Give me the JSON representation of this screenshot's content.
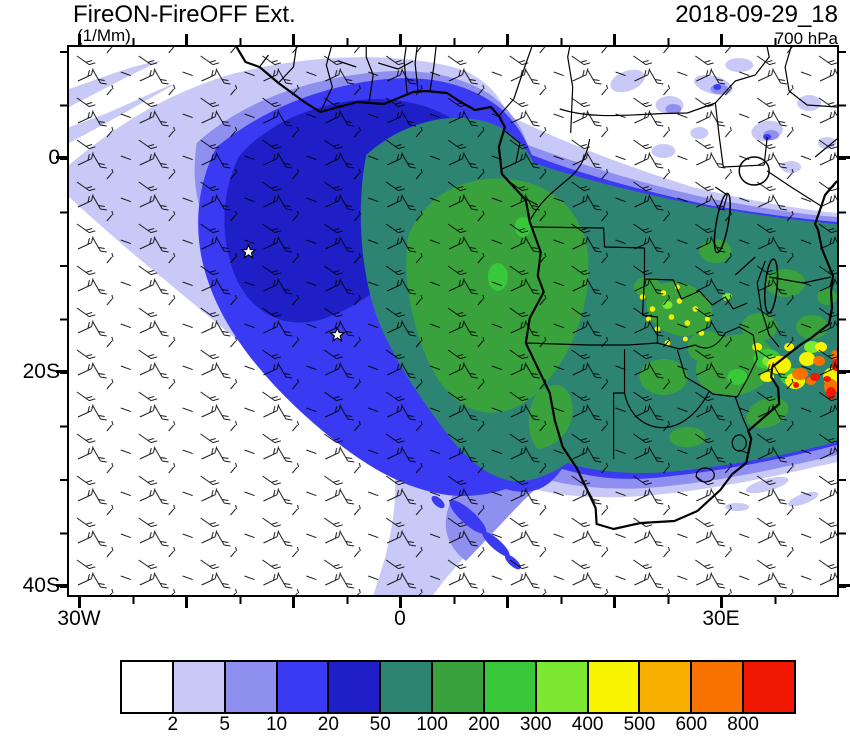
{
  "header": {
    "title": "FireON-FireOFF Ext.",
    "units": "(1/Mm)",
    "datetime": "2018-09-29_18",
    "level": "700 hPa"
  },
  "axes": {
    "y_ticks": [
      "0",
      "20S",
      "40S"
    ],
    "x_ticks": [
      "30W",
      "0",
      "30E"
    ]
  },
  "colorbar": {
    "colors": [
      "#ffffff",
      "#c9c9f7",
      "#8f8ff0",
      "#3a3af2",
      "#1f1fc8",
      "#2e8472",
      "#3aa23c",
      "#38c83a",
      "#7ce832",
      "#f8f400",
      "#f8b000",
      "#f87200",
      "#f01800"
    ],
    "labels": [
      "2",
      "5",
      "10",
      "20",
      "50",
      "100",
      "200",
      "300",
      "400",
      "500",
      "600",
      "800"
    ]
  },
  "chart_data": {
    "type": "heatmap",
    "title": "FireON-FireOFF Ext.",
    "units": "1/Mm",
    "time": "2018-09-29_18",
    "pressure_level": "700 hPa",
    "x_ticks": [
      "30W",
      "0",
      "30E"
    ],
    "y_ticks": [
      "0",
      "20S",
      "40S"
    ],
    "levels": [
      2,
      5,
      10,
      20,
      50,
      100,
      200,
      300,
      400,
      500,
      600,
      800
    ],
    "palette": [
      "#ffffff",
      "#c9c9f7",
      "#8f8ff0",
      "#3a3af2",
      "#1f1fc8",
      "#2e8472",
      "#3aa23c",
      "#38c83a",
      "#7ce832",
      "#f8f400",
      "#f8b000",
      "#f87200",
      "#f01800"
    ],
    "legend_position": "bottom",
    "overlays": [
      "wind-barbs",
      "coastlines",
      "country-borders",
      "lakes"
    ],
    "markers": [
      {
        "shape": "star",
        "lon_approx": -14,
        "lat_approx": -9
      },
      {
        "shape": "star",
        "lon_approx": -6,
        "lat_approx": -16.5
      }
    ],
    "features": [
      {
        "region": "tropical South Atlantic / Gulf of Guinea plume",
        "value_range": "10-20"
      },
      {
        "region": "central Africa / Angola-Congo",
        "value_range": "50-200"
      },
      {
        "region": "Zimbabwe-Mozambique hotspot",
        "value_range": "400-800"
      }
    ]
  }
}
